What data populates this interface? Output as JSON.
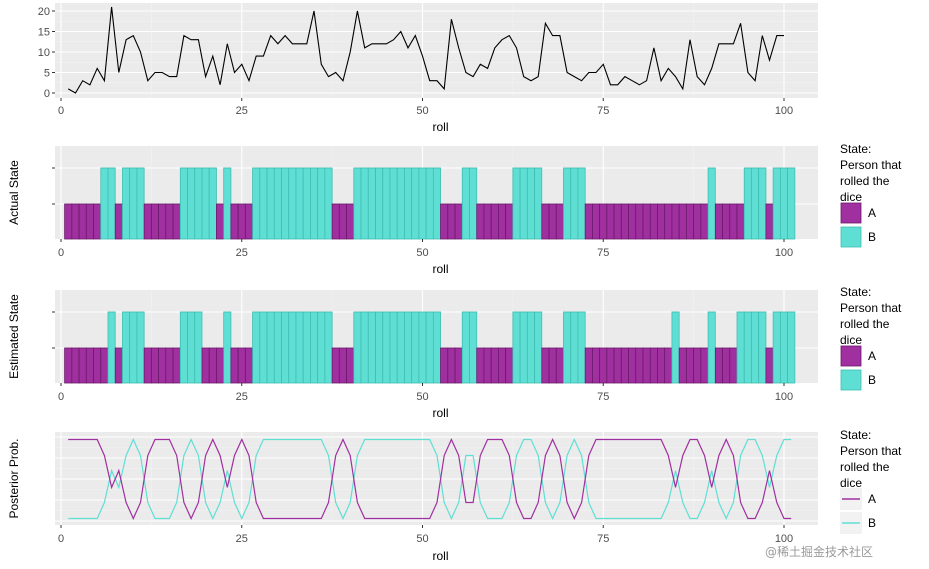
{
  "chart_data": [
    {
      "type": "line",
      "xlabel": "roll",
      "ylabel": "",
      "xlim": [
        0,
        100
      ],
      "ylim": [
        0,
        21
      ],
      "x_ticks": [
        "0",
        "25",
        "50",
        "75",
        "100"
      ],
      "y_ticks": [
        "0",
        "5",
        "10",
        "15",
        "20"
      ],
      "grid": true,
      "series": [
        {
          "color": "#000000",
          "x": [
            1,
            2,
            3,
            4,
            5,
            6,
            7,
            8,
            9,
            10,
            11,
            12,
            13,
            14,
            15,
            16,
            17,
            18,
            19,
            20,
            21,
            22,
            23,
            24,
            25,
            26,
            27,
            28,
            29,
            30,
            31,
            32,
            33,
            34,
            35,
            36,
            37,
            38,
            39,
            40,
            41,
            42,
            43,
            44,
            45,
            46,
            47,
            48,
            49,
            50,
            51,
            52,
            53,
            54,
            55,
            56,
            57,
            58,
            59,
            60,
            61,
            62,
            63,
            64,
            65,
            66,
            67,
            68,
            69,
            70,
            71,
            72,
            73,
            74,
            75,
            76,
            77,
            78,
            79,
            80,
            81,
            82,
            83,
            84,
            85,
            86,
            87,
            88,
            89,
            90,
            91,
            92,
            93,
            94,
            95,
            96,
            97,
            98,
            99,
            100
          ],
          "values": [
            1,
            0,
            3,
            2,
            6,
            3,
            21,
            5,
            13,
            14,
            10,
            3,
            5,
            5,
            4,
            4,
            14,
            13,
            13,
            4,
            9,
            2,
            12,
            5,
            7,
            3,
            9,
            9,
            14,
            12,
            14,
            12,
            12,
            12,
            20,
            7,
            4,
            5,
            3,
            10,
            20,
            11,
            12,
            12,
            12,
            13,
            15,
            11,
            14,
            9,
            3,
            3,
            1,
            18,
            11,
            5,
            4,
            7,
            6,
            11,
            13,
            14,
            11,
            4,
            3,
            4,
            17,
            14,
            14,
            5,
            4,
            3,
            5,
            5,
            7,
            2,
            2,
            4,
            3,
            2,
            3,
            11,
            3,
            6,
            4,
            1,
            13,
            4,
            2,
            6,
            12,
            12,
            12,
            17,
            5,
            3,
            14,
            8,
            14,
            14
          ]
        }
      ]
    },
    {
      "type": "bar",
      "xlabel": "roll",
      "ylabel": "Actual State",
      "xlim": [
        0,
        100
      ],
      "x_ticks": [
        "0",
        "25",
        "50",
        "75",
        "100"
      ],
      "grid": true,
      "legend": {
        "title": [
          "State:",
          "Person that",
          "rolled the",
          "dice"
        ],
        "entries": [
          "A",
          "B"
        ],
        "placement": "right"
      },
      "colors": {
        "A": "#a0309f",
        "B": "#5fdfd4"
      },
      "states": "AAAAABBABBBAAAAABBBBBABAAABBBBBBBBBBBAAABBBBBBBBBBBBAAABBAAAAABBBBAAABBBAAAAAAAAAAAAAAAAABAAAABBBABBB"
    },
    {
      "type": "bar",
      "xlabel": "roll",
      "ylabel": "Estimated State",
      "xlim": [
        0,
        100
      ],
      "x_ticks": [
        "0",
        "25",
        "50",
        "75",
        "100"
      ],
      "grid": true,
      "legend": {
        "title": [
          "State:",
          "Person that",
          "rolled the",
          "dice"
        ],
        "entries": [
          "A",
          "B"
        ],
        "placement": "right"
      },
      "colors": {
        "A": "#a0309f",
        "B": "#5fdfd4"
      },
      "states": "AAAAAABABBBAAAAABBBAAABAAABBBBBBBBBBBAAABBBBBBBBBBBBAAABBAAAAABBBBAAABBBAAAAAAAAAAAABAAAABAAABBBBABBB"
    },
    {
      "type": "line",
      "xlabel": "roll",
      "ylabel": "Posterior Prob.",
      "xlim": [
        0,
        100
      ],
      "ylim": [
        0,
        1
      ],
      "x_ticks": [
        "0",
        "25",
        "50",
        "75",
        "100"
      ],
      "grid": true,
      "legend": {
        "title": [
          "State:",
          "Person that",
          "rolled the",
          "dice"
        ],
        "entries": [
          "A",
          "B"
        ],
        "placement": "right"
      },
      "series": [
        {
          "name": "A",
          "color": "#a0309f"
        },
        {
          "name": "B",
          "color": "#5fdfd4"
        }
      ],
      "estimated_states_source": "AAAAAABABBBAAAAABBBAAABAAABBBBBBBBBBBAAABBBBBBBBBBBBAAABBAAAAABBBBAAABBBAAAAAAAAAAAABAAAABAAABBBBABBB"
    }
  ],
  "watermark": "@稀土掘金技术社区"
}
